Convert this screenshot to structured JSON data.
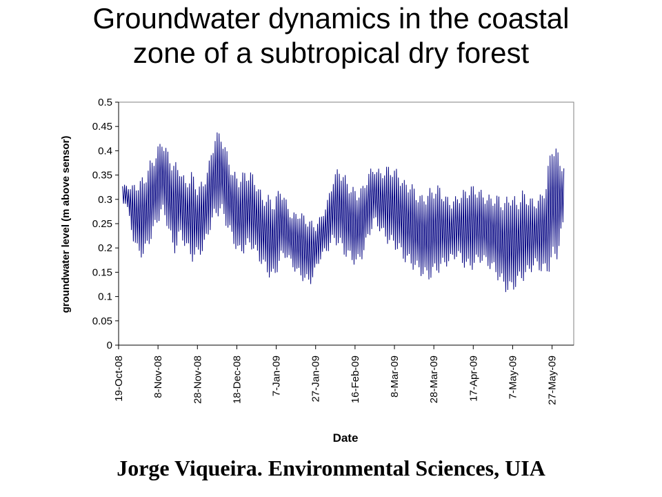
{
  "slide": {
    "title_line1": "Groundwater dynamics in the coastal",
    "title_line2": "zone of a subtropical dry forest",
    "footer": "Jorge Viqueira. Environmental Sciences, UIA"
  },
  "chart_data": {
    "type": "line",
    "title": "",
    "xlabel": "Date",
    "ylabel": "groundwater level (m above sensor)",
    "ylim": [
      0,
      0.5
    ],
    "yticks": [
      "0",
      "0.05",
      "0.1",
      "0.15",
      "0.2",
      "0.25",
      "0.3",
      "0.35",
      "0.4",
      "0.45",
      "0.5"
    ],
    "xlim": [
      "2008-10-19",
      "2009-06-07"
    ],
    "xticks": [
      "19-Oct-08",
      "8-Nov-08",
      "28-Nov-08",
      "18-Dec-08",
      "7-Jan-09",
      "27-Jan-09",
      "16-Feb-09",
      "8-Mar-09",
      "28-Mar-09",
      "17-Apr-09",
      "7-May-09",
      "27-May-09"
    ],
    "grid": false,
    "legend": "none",
    "line_color": "#000080",
    "series": [
      {
        "name": "",
        "x": [
          "2008-10-23",
          "2008-10-26",
          "2008-10-29",
          "2008-11-01",
          "2008-11-04",
          "2008-11-07",
          "2008-11-10",
          "2008-11-13",
          "2008-11-16",
          "2008-11-19",
          "2008-11-22",
          "2008-11-25",
          "2008-11-28",
          "2008-12-01",
          "2008-12-04",
          "2008-12-07",
          "2008-12-10",
          "2008-12-13",
          "2008-12-16",
          "2008-12-19",
          "2008-12-22",
          "2008-12-25",
          "2008-12-28",
          "2008-12-31",
          "2009-01-03",
          "2009-01-06",
          "2009-01-09",
          "2009-01-12",
          "2009-01-15",
          "2009-01-18",
          "2009-01-21",
          "2009-01-24",
          "2009-01-27",
          "2009-01-30",
          "2009-02-02",
          "2009-02-05",
          "2009-02-08",
          "2009-02-11",
          "2009-02-14",
          "2009-02-17",
          "2009-02-20",
          "2009-02-23",
          "2009-02-26",
          "2009-03-01",
          "2009-03-04",
          "2009-03-07",
          "2009-03-10",
          "2009-03-13",
          "2009-03-16",
          "2009-03-19",
          "2009-03-22",
          "2009-03-25",
          "2009-03-28",
          "2009-03-31",
          "2009-04-03",
          "2009-04-06",
          "2009-04-09",
          "2009-04-12",
          "2009-04-15",
          "2009-04-18",
          "2009-04-21",
          "2009-04-24",
          "2009-04-27",
          "2009-04-30",
          "2009-05-03",
          "2009-05-06",
          "2009-05-09",
          "2009-05-12",
          "2009-05-15",
          "2009-05-18",
          "2009-05-21",
          "2009-05-24",
          "2009-05-27",
          "2009-05-30",
          "2009-06-02"
        ],
        "max": [
          0.33,
          0.33,
          0.34,
          0.35,
          0.38,
          0.4,
          0.43,
          0.4,
          0.38,
          0.37,
          0.34,
          0.36,
          0.33,
          0.34,
          0.38,
          0.44,
          0.44,
          0.4,
          0.36,
          0.35,
          0.36,
          0.36,
          0.34,
          0.31,
          0.31,
          0.3,
          0.33,
          0.3,
          0.27,
          0.28,
          0.27,
          0.26,
          0.25,
          0.27,
          0.3,
          0.35,
          0.37,
          0.35,
          0.33,
          0.32,
          0.33,
          0.36,
          0.37,
          0.36,
          0.37,
          0.37,
          0.36,
          0.34,
          0.34,
          0.32,
          0.31,
          0.32,
          0.33,
          0.33,
          0.31,
          0.3,
          0.31,
          0.32,
          0.33,
          0.33,
          0.32,
          0.31,
          0.31,
          0.31,
          0.3,
          0.32,
          0.3,
          0.32,
          0.31,
          0.3,
          0.31,
          0.34,
          0.43,
          0.4,
          0.37
        ],
        "min": [
          0.29,
          0.22,
          0.18,
          0.18,
          0.21,
          0.24,
          0.27,
          0.24,
          0.18,
          0.22,
          0.2,
          0.17,
          0.18,
          0.19,
          0.23,
          0.26,
          0.27,
          0.24,
          0.21,
          0.18,
          0.19,
          0.2,
          0.18,
          0.16,
          0.14,
          0.13,
          0.17,
          0.18,
          0.16,
          0.14,
          0.13,
          0.12,
          0.15,
          0.18,
          0.19,
          0.21,
          0.2,
          0.18,
          0.17,
          0.16,
          0.18,
          0.22,
          0.25,
          0.23,
          0.21,
          0.2,
          0.19,
          0.17,
          0.16,
          0.15,
          0.14,
          0.13,
          0.14,
          0.15,
          0.16,
          0.17,
          0.18,
          0.16,
          0.15,
          0.16,
          0.17,
          0.16,
          0.15,
          0.13,
          0.11,
          0.1,
          0.12,
          0.13,
          0.14,
          0.16,
          0.15,
          0.14,
          0.16,
          0.18,
          0.25
        ]
      }
    ]
  }
}
